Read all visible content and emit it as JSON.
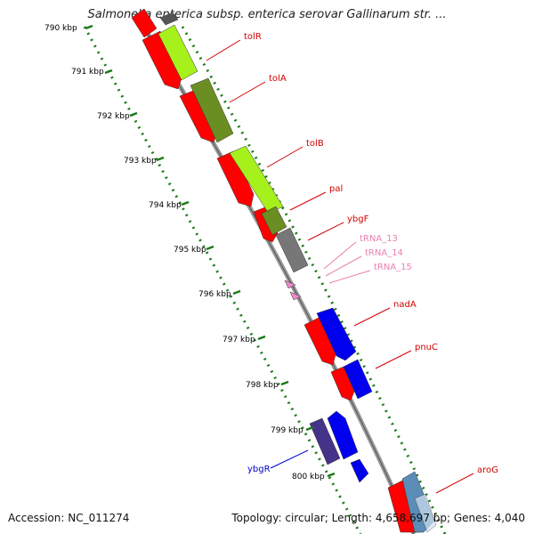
{
  "title": "Salmonella enterica subsp. enterica serovar Gallinarum str. ...",
  "footer": {
    "accession": "Accession: NC_011274",
    "topology": "Topology: circular; Length: 4,658,697 bp; Genes: 4,040"
  },
  "ticks": [
    "790 kbp",
    "791 kbp",
    "792 kbp",
    "793 kbp",
    "794 kbp",
    "795 kbp",
    "796 kbp",
    "797 kbp",
    "798 kbp",
    "799 kbp",
    "800 kbp"
  ],
  "gene_labels": [
    {
      "text": "tolR",
      "color": "#d40000"
    },
    {
      "text": "tolA",
      "color": "#d40000"
    },
    {
      "text": "tolB",
      "color": "#d40000"
    },
    {
      "text": "pal",
      "color": "#d40000"
    },
    {
      "text": "ybgF",
      "color": "#d40000"
    },
    {
      "text": "tRNA_13",
      "color": "#e87fb0"
    },
    {
      "text": "tRNA_14",
      "color": "#e87fb0"
    },
    {
      "text": "tRNA_15",
      "color": "#e87fb0"
    },
    {
      "text": "nadA",
      "color": "#d40000"
    },
    {
      "text": "pnuC",
      "color": "#d40000"
    },
    {
      "text": "ybgR",
      "color": "#0000cc"
    },
    {
      "text": "aroG",
      "color": "#d40000"
    }
  ],
  "colors": {
    "cds": "#ff0000",
    "lightgreen": "#a6f01c",
    "olive": "#6b8e23",
    "gray": "#777777",
    "blue": "#0000ee",
    "navy": "#443388",
    "trna": "#ee88cc",
    "steel": "#5b8db8",
    "backbone": "#999999",
    "ticks": "#1a7a1a"
  }
}
